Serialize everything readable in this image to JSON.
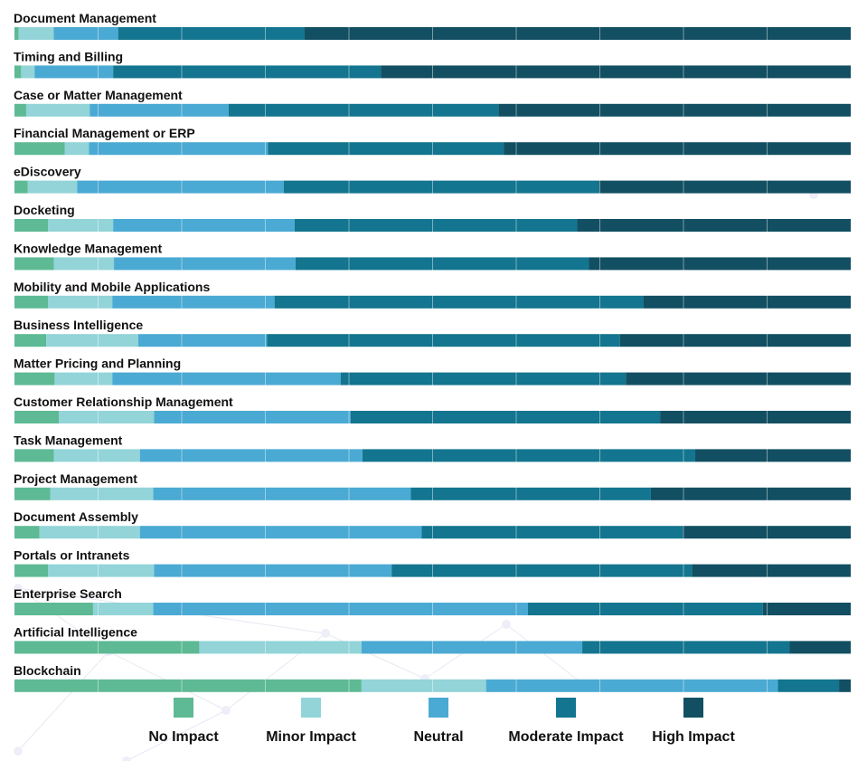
{
  "chart_data": {
    "type": "bar",
    "orientation": "horizontal",
    "stacked": true,
    "percent_stacked": true,
    "grid": true,
    "legend_placement": "bottom",
    "categories": [
      "Document Management",
      "Timing and Billing",
      "Case or Matter Management",
      "Financial Management or ERP",
      "eDiscovery",
      "Docketing",
      "Knowledge Management",
      "Mobility and Mobile Applications",
      "Business Intelligence",
      "Matter Pricing and Planning",
      "Customer Relationship Management",
      "Task Management",
      "Project Management",
      "Document Assembly",
      "Portals or Intranets",
      "Enterprise Search",
      "Artificial Intelligence",
      "Blockchain"
    ],
    "series": [
      {
        "name": "No Impact",
        "color": "#5dba94",
        "values": [
          0.5,
          0.8,
          1.4,
          6.0,
          1.6,
          4.0,
          4.7,
          4.0,
          3.8,
          4.8,
          5.3,
          4.7,
          4.3,
          3.0,
          4.0,
          9.4,
          22.1,
          41.5
        ]
      },
      {
        "name": "Minor Impact",
        "color": "#92d4d8",
        "values": [
          4.2,
          1.6,
          7.6,
          2.9,
          5.9,
          7.8,
          7.2,
          7.7,
          11.0,
          6.9,
          11.4,
          10.3,
          12.3,
          12.0,
          12.7,
          7.2,
          19.4,
          14.9
        ]
      },
      {
        "name": "Neutral",
        "color": "#4aaad3",
        "values": [
          7.7,
          9.4,
          16.6,
          21.4,
          24.7,
          21.7,
          21.7,
          19.4,
          15.4,
          27.3,
          23.5,
          26.6,
          30.8,
          33.7,
          28.4,
          44.8,
          26.4,
          34.9
        ]
      },
      {
        "name": "Moderate Impact",
        "color": "#13758f",
        "values": [
          22.3,
          32.0,
          32.3,
          28.2,
          37.7,
          33.8,
          35.1,
          44.1,
          42.2,
          34.1,
          37.0,
          39.8,
          28.7,
          31.2,
          35.9,
          28.1,
          24.8,
          7.3
        ]
      },
      {
        "name": "High Impact",
        "color": "#124f62",
        "values": [
          65.3,
          56.2,
          42.1,
          41.5,
          30.1,
          32.7,
          31.3,
          24.8,
          27.6,
          26.9,
          22.8,
          18.6,
          23.9,
          20.1,
          19.0,
          10.5,
          7.3,
          1.4
        ]
      }
    ]
  }
}
